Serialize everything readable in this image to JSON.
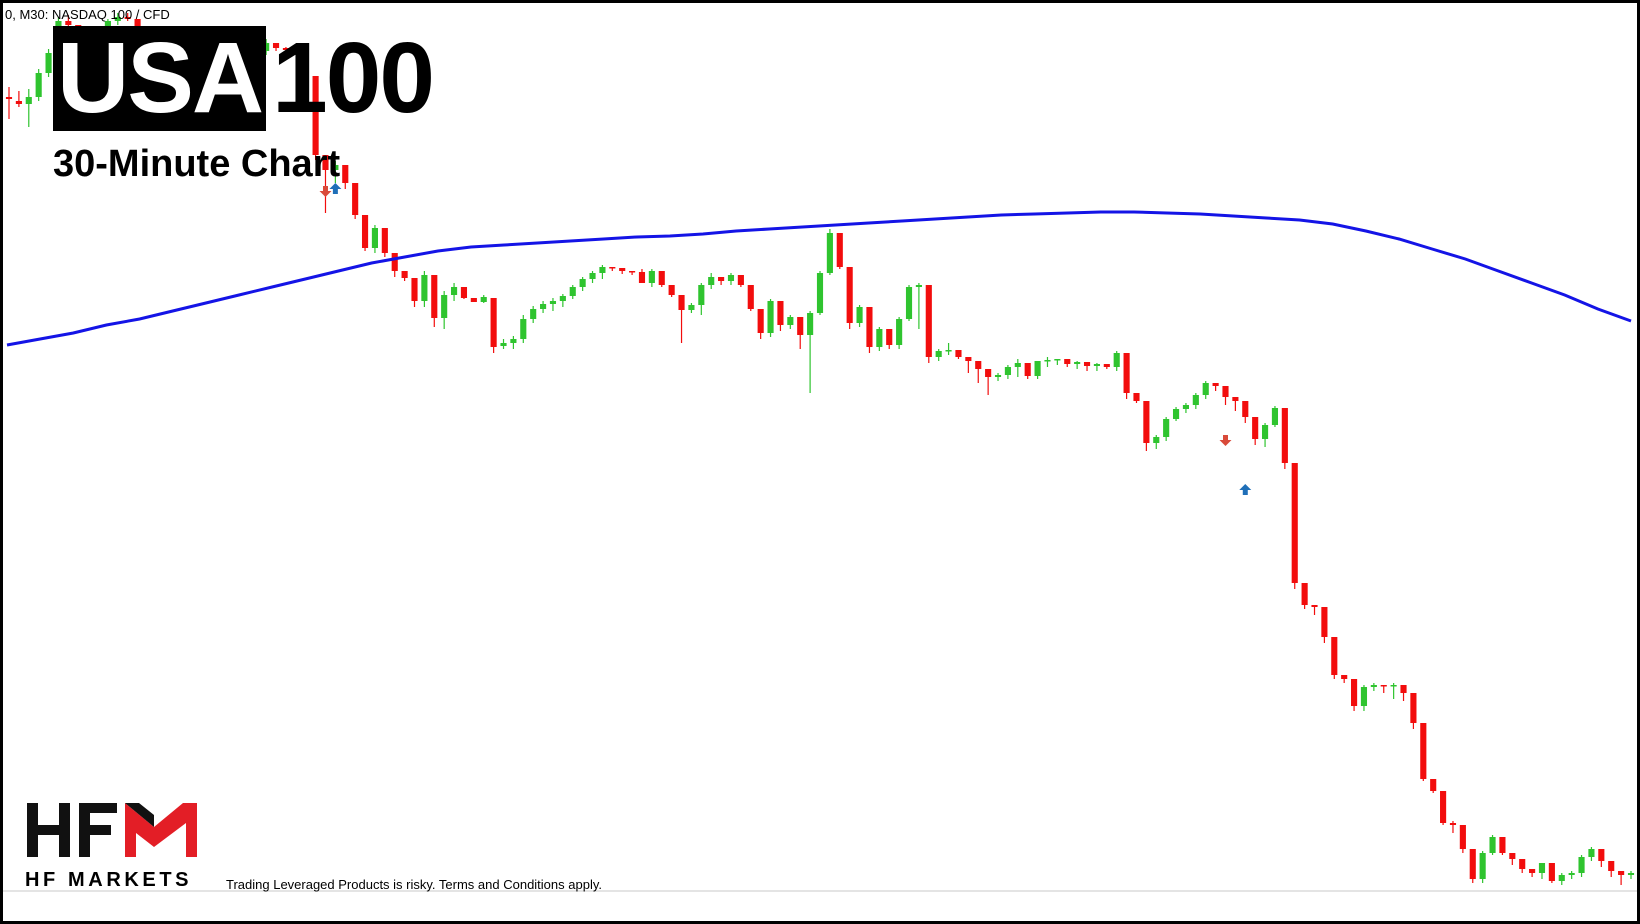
{
  "header": {
    "caption": "0, M30:  NASDAQ 100 / CFD",
    "title_boxed": "USA",
    "title_rest": "100",
    "subtitle": "30-Minute Chart"
  },
  "brand": {
    "logo_icon": "hfm-logo-icon",
    "name": "HF MARKETS",
    "logo_red": "#e31e26",
    "logo_black": "#111111"
  },
  "footer": {
    "disclaimer": "Trading Leveraged Products is risky. Terms and Conditions apply."
  },
  "chart_data": {
    "type": "candlestick",
    "symbol": "NASDAQ 100 / CFD",
    "timeframe": "M30",
    "colors": {
      "up": "#2fc42f",
      "down": "#f20d0d",
      "ma": "#1414e6",
      "signal_up": "#1f6fb8",
      "signal_down": "#d94a3a"
    },
    "grid": false,
    "candles": [
      [
        94,
        84,
        116,
        96
      ],
      [
        98,
        88,
        104,
        101
      ],
      [
        101,
        86,
        124,
        94
      ],
      [
        94,
        66,
        98,
        70
      ],
      [
        70,
        46,
        74,
        50
      ],
      [
        50,
        14,
        54,
        18
      ],
      [
        18,
        12,
        24,
        22
      ],
      [
        22,
        26,
        32,
        29
      ],
      [
        29,
        33,
        35,
        34
      ],
      [
        34,
        30,
        38,
        31
      ],
      [
        31,
        16,
        34,
        18
      ],
      [
        18,
        10,
        22,
        14
      ],
      [
        14,
        10,
        18,
        16
      ],
      [
        16,
        42,
        46,
        45
      ],
      [
        45,
        41,
        47,
        44
      ],
      [
        44,
        42,
        48,
        45
      ],
      [
        45,
        40,
        50,
        48
      ],
      [
        48,
        46,
        58,
        52
      ],
      [
        52,
        50,
        58,
        56
      ],
      [
        56,
        52,
        66,
        54
      ],
      [
        54,
        48,
        58,
        50
      ],
      [
        50,
        60,
        74,
        71
      ],
      [
        71,
        60,
        74,
        62
      ],
      [
        62,
        58,
        66,
        64
      ],
      [
        64,
        70,
        74,
        72
      ],
      [
        72,
        46,
        78,
        48
      ],
      [
        48,
        36,
        52,
        40
      ],
      [
        40,
        44,
        48,
        45
      ],
      [
        45,
        44,
        50,
        47
      ],
      [
        47,
        42,
        52,
        45
      ],
      [
        45,
        68,
        78,
        73
      ],
      [
        73,
        155,
        157,
        152
      ],
      [
        152,
        172,
        210,
        167
      ],
      [
        167,
        158,
        180,
        162
      ],
      [
        162,
        178,
        186,
        180
      ],
      [
        180,
        214,
        216,
        212
      ],
      [
        212,
        235,
        248,
        245
      ],
      [
        245,
        222,
        250,
        225
      ],
      [
        225,
        248,
        254,
        250
      ],
      [
        250,
        270,
        274,
        268
      ],
      [
        268,
        272,
        278,
        275
      ],
      [
        275,
        302,
        304,
        298
      ],
      [
        298,
        268,
        304,
        272
      ],
      [
        272,
        318,
        324,
        315
      ],
      [
        315,
        288,
        326,
        292
      ],
      [
        292,
        280,
        298,
        284
      ],
      [
        284,
        292,
        296,
        295
      ],
      [
        295,
        298,
        298,
        299
      ],
      [
        299,
        292,
        300,
        294
      ],
      [
        295,
        343,
        350,
        344
      ],
      [
        343,
        336,
        346,
        340
      ],
      [
        340,
        333,
        346,
        336
      ],
      [
        336,
        312,
        340,
        316
      ],
      [
        316,
        303,
        320,
        306
      ],
      [
        306,
        298,
        310,
        301
      ],
      [
        301,
        295,
        308,
        298
      ],
      [
        298,
        291,
        304,
        293
      ],
      [
        293,
        282,
        296,
        284
      ],
      [
        284,
        274,
        288,
        276
      ],
      [
        276,
        268,
        280,
        270
      ],
      [
        270,
        262,
        276,
        264
      ],
      [
        264,
        266,
        268,
        265
      ],
      [
        265,
        269,
        271,
        268
      ],
      [
        268,
        270,
        272,
        269
      ],
      [
        269,
        266,
        276,
        280
      ],
      [
        280,
        266,
        284,
        268
      ],
      [
        268,
        279,
        284,
        282
      ],
      [
        282,
        290,
        294,
        292
      ],
      [
        292,
        305,
        340,
        307
      ],
      [
        307,
        300,
        310,
        302
      ],
      [
        302,
        280,
        312,
        282
      ],
      [
        282,
        270,
        286,
        274
      ],
      [
        274,
        276,
        282,
        278
      ],
      [
        278,
        270,
        282,
        272
      ],
      [
        272,
        280,
        284,
        282
      ],
      [
        282,
        305,
        308,
        306
      ],
      [
        306,
        332,
        336,
        330
      ],
      [
        330,
        296,
        334,
        298
      ],
      [
        298,
        320,
        328,
        322
      ],
      [
        322,
        312,
        326,
        314
      ],
      [
        314,
        330,
        346,
        332
      ],
      [
        332,
        308,
        390,
        310
      ],
      [
        310,
        268,
        312,
        270
      ],
      [
        270,
        226,
        272,
        230
      ],
      [
        230,
        262,
        266,
        264
      ],
      [
        264,
        322,
        326,
        320
      ],
      [
        320,
        302,
        324,
        304
      ],
      [
        304,
        346,
        350,
        344
      ],
      [
        344,
        324,
        348,
        326
      ],
      [
        326,
        340,
        346,
        342
      ],
      [
        342,
        314,
        346,
        316
      ],
      [
        316,
        282,
        318,
        284
      ],
      [
        284,
        280,
        326,
        282
      ],
      [
        282,
        355,
        360,
        354
      ],
      [
        354,
        346,
        358,
        348
      ],
      [
        348,
        340,
        352,
        347
      ],
      [
        347,
        352,
        356,
        354
      ],
      [
        354,
        356,
        370,
        358
      ],
      [
        358,
        368,
        380,
        366
      ],
      [
        366,
        370,
        392,
        374
      ],
      [
        374,
        370,
        378,
        372
      ],
      [
        372,
        362,
        376,
        364
      ],
      [
        364,
        356,
        374,
        360
      ],
      [
        360,
        370,
        376,
        373
      ],
      [
        373,
        360,
        376,
        358
      ],
      [
        358,
        354,
        364,
        357
      ],
      [
        357,
        359,
        362,
        356
      ],
      [
        356,
        360,
        364,
        361
      ],
      [
        361,
        358,
        366,
        359
      ],
      [
        359,
        364,
        368,
        363
      ],
      [
        363,
        360,
        368,
        361
      ],
      [
        361,
        362,
        366,
        364
      ],
      [
        364,
        348,
        368,
        350
      ],
      [
        350,
        392,
        396,
        390
      ],
      [
        390,
        396,
        400,
        398
      ],
      [
        398,
        442,
        448,
        440
      ],
      [
        440,
        432,
        446,
        434
      ],
      [
        434,
        414,
        438,
        416
      ],
      [
        416,
        404,
        418,
        406
      ],
      [
        406,
        400,
        410,
        402
      ],
      [
        402,
        390,
        406,
        392
      ],
      [
        392,
        378,
        396,
        380
      ],
      [
        380,
        384,
        388,
        383
      ],
      [
        383,
        392,
        402,
        394
      ],
      [
        394,
        396,
        408,
        398
      ],
      [
        398,
        416,
        420,
        414
      ],
      [
        414,
        438,
        442,
        436
      ],
      [
        436,
        420,
        444,
        422
      ],
      [
        422,
        403,
        424,
        405
      ],
      [
        405,
        462,
        466,
        460
      ],
      [
        460,
        582,
        586,
        580
      ],
      [
        580,
        600,
        606,
        602
      ],
      [
        602,
        603,
        612,
        604
      ],
      [
        604,
        636,
        640,
        634
      ],
      [
        634,
        670,
        676,
        672
      ],
      [
        672,
        674,
        680,
        676
      ],
      [
        676,
        700,
        708,
        703
      ],
      [
        703,
        682,
        708,
        684
      ],
      [
        684,
        680,
        688,
        682
      ],
      [
        682,
        684,
        690,
        683
      ],
      [
        683,
        680,
        696,
        682
      ],
      [
        682,
        692,
        698,
        690
      ],
      [
        690,
        722,
        726,
        720
      ],
      [
        720,
        774,
        778,
        776
      ],
      [
        776,
        786,
        790,
        788
      ],
      [
        788,
        818,
        822,
        820
      ],
      [
        820,
        818,
        830,
        822
      ],
      [
        822,
        844,
        850,
        846
      ],
      [
        846,
        874,
        880,
        876
      ],
      [
        876,
        848,
        880,
        850
      ],
      [
        850,
        832,
        852,
        834
      ],
      [
        834,
        848,
        852,
        850
      ],
      [
        850,
        858,
        862,
        856
      ],
      [
        856,
        864,
        870,
        866
      ],
      [
        866,
        866,
        874,
        870
      ],
      [
        870,
        862,
        876,
        860
      ],
      [
        860,
        876,
        880,
        878
      ],
      [
        878,
        870,
        882,
        872
      ],
      [
        872,
        868,
        876,
        870
      ],
      [
        870,
        852,
        874,
        854
      ],
      [
        854,
        844,
        858,
        846
      ],
      [
        846,
        856,
        864,
        858
      ],
      [
        858,
        870,
        874,
        868
      ],
      [
        868,
        870,
        882,
        872
      ],
      [
        872,
        868,
        876,
        870
      ]
    ],
    "ma_series": [
      342,
      336,
      330,
      322,
      316,
      308,
      300,
      292,
      284,
      276,
      268,
      260,
      254,
      248,
      244,
      242,
      240,
      238,
      236,
      234,
      233,
      231,
      228,
      226,
      224,
      222,
      220,
      218,
      216,
      214,
      212,
      211,
      210,
      209,
      209,
      210,
      211,
      213,
      215,
      217,
      221,
      228,
      236,
      246,
      256,
      268,
      280,
      292,
      306,
      318
    ],
    "signals": [
      {
        "type": "down",
        "index": 32,
        "price": 188
      },
      {
        "type": "up",
        "index": 33,
        "price": 186
      },
      {
        "type": "down",
        "index": 123,
        "price": 437
      },
      {
        "type": "up",
        "index": 125,
        "price": 487
      }
    ]
  }
}
